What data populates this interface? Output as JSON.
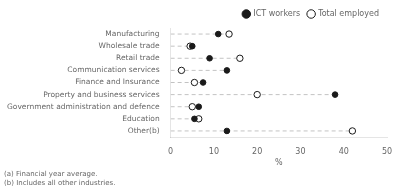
{
  "chart_data": {
    "type": "dot",
    "categories": [
      "Manufacturing",
      "Wholesale trade",
      "Retail trade",
      "Communication services",
      "Finance and Insurance",
      "Property and business services",
      "Government administration and defence",
      "Education",
      "Other(b)"
    ],
    "series": [
      {
        "name": "ICT workers",
        "color": "#1a1a1a",
        "marker": "circle",
        "values": [
          11.0,
          5.0,
          9.0,
          13.0,
          7.5,
          38.0,
          6.5,
          5.5,
          13.0
        ]
      },
      {
        "name": "Total employed",
        "color": "#1a1a1a",
        "marker": "open_circle",
        "values": [
          13.5,
          4.5,
          16.0,
          2.5,
          5.5,
          20.0,
          5.0,
          6.5,
          42.0
        ]
      }
    ],
    "xlabel": "%",
    "xlim": [
      0,
      50
    ],
    "xticks": [
      0,
      10,
      20,
      30,
      40,
      50
    ],
    "grid": false,
    "legend": "upper right",
    "annotations": [
      "(a) Financial year average.",
      "(b) Includes all other industries."
    ]
  }
}
